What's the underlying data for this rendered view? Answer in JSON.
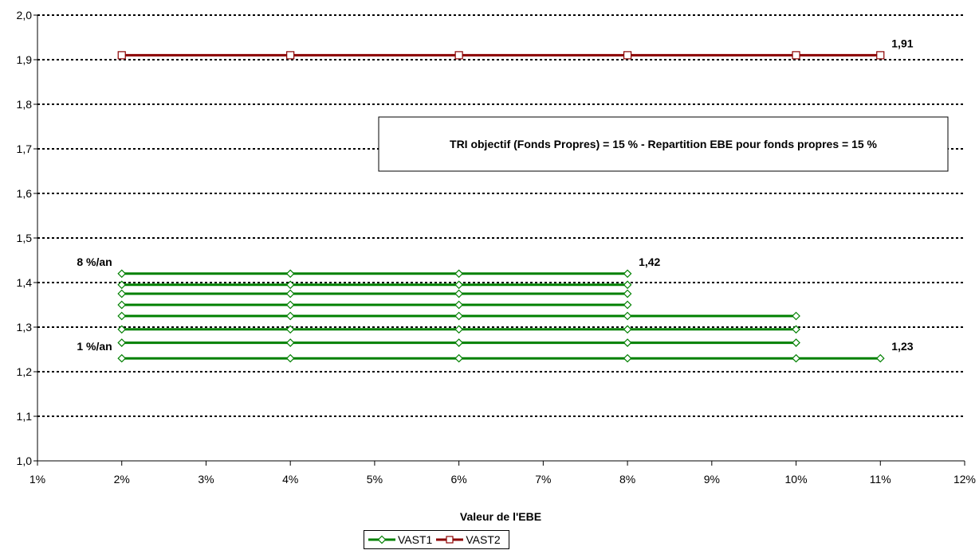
{
  "chart_data": {
    "type": "line",
    "title": "",
    "xlabel": "Valeur de l'EBE",
    "ylabel": "",
    "xlim": [
      1,
      12
    ],
    "ylim": [
      1.0,
      2.0
    ],
    "x_ticks": [
      "1%",
      "2%",
      "3%",
      "4%",
      "5%",
      "6%",
      "7%",
      "8%",
      "9%",
      "10%",
      "11%",
      "12%"
    ],
    "y_ticks": [
      "1,0",
      "1,1",
      "1,2",
      "1,3",
      "1,4",
      "1,5",
      "1,6",
      "1,7",
      "1,8",
      "1,9",
      "2,0"
    ],
    "grid": "horizontal dotted",
    "legend_position": "bottom",
    "series": [
      {
        "name": "VAST1",
        "color": "#008000",
        "marker": "diamond",
        "lines": [
          {
            "x": [
              2,
              4,
              6,
              8,
              10,
              11
            ],
            "y": [
              1.23,
              1.23,
              1.23,
              1.23,
              1.23,
              1.23
            ]
          },
          {
            "x": [
              2,
              4,
              6,
              8,
              10
            ],
            "y": [
              1.265,
              1.265,
              1.265,
              1.265,
              1.265
            ]
          },
          {
            "x": [
              2,
              4,
              6,
              8,
              10
            ],
            "y": [
              1.295,
              1.295,
              1.295,
              1.295,
              1.295
            ]
          },
          {
            "x": [
              2,
              4,
              6,
              8,
              10
            ],
            "y": [
              1.325,
              1.325,
              1.325,
              1.325,
              1.325
            ]
          },
          {
            "x": [
              2,
              4,
              6,
              8
            ],
            "y": [
              1.35,
              1.35,
              1.35,
              1.35
            ]
          },
          {
            "x": [
              2,
              4,
              6,
              8
            ],
            "y": [
              1.375,
              1.375,
              1.375,
              1.375
            ]
          },
          {
            "x": [
              2,
              4,
              6,
              8
            ],
            "y": [
              1.395,
              1.395,
              1.395,
              1.395
            ]
          },
          {
            "x": [
              2,
              4,
              6,
              8
            ],
            "y": [
              1.42,
              1.42,
              1.42,
              1.42
            ]
          }
        ]
      },
      {
        "name": "VAST2",
        "color": "#8B0000",
        "marker": "square",
        "lines": [
          {
            "x": [
              2,
              4,
              6,
              8,
              10,
              11
            ],
            "y": [
              1.91,
              1.91,
              1.91,
              1.91,
              1.91,
              1.91
            ]
          }
        ]
      }
    ],
    "annotations": [
      {
        "text": "1,91",
        "x": 11,
        "y": 1.91,
        "anchor": "above-right"
      },
      {
        "text": "1,42",
        "x": 8,
        "y": 1.42,
        "anchor": "above-right"
      },
      {
        "text": "1,23",
        "x": 11,
        "y": 1.23,
        "anchor": "above-right"
      },
      {
        "text": "8 %/an",
        "x": 2,
        "y": 1.42,
        "anchor": "above-left"
      },
      {
        "text": "1 %/an",
        "x": 2,
        "y": 1.23,
        "anchor": "above-left"
      }
    ],
    "textbox": "TRI objectif (Fonds Propres) = 15 % - Repartition EBE pour fonds propres = 15 %"
  }
}
